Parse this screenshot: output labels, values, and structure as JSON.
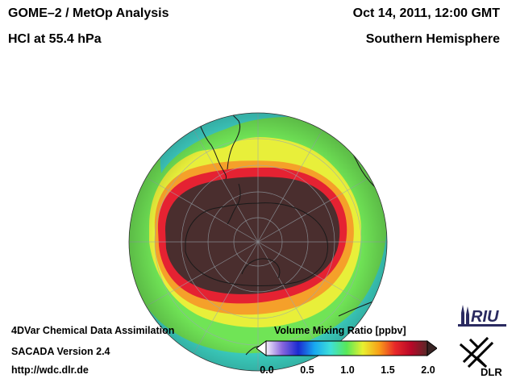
{
  "header": {
    "title_left_1": "GOME–2 / MetOp Analysis",
    "title_left_2": "HCl at 55.4 hPa",
    "title_right_1": "Oct 14, 2011, 12:00 GMT",
    "title_right_2": "Southern Hemisphere"
  },
  "footer": {
    "line1": "4DVar Chemical Data Assimilation",
    "line2": "SACADA Version 2.4",
    "line3": "http://wdc.dlr.de"
  },
  "colorbar": {
    "title": "Volume Mixing Ratio [ppbv]",
    "ticks": [
      "0.0",
      "0.5",
      "1.0",
      "1.5",
      "2.0"
    ],
    "min": 0.0,
    "max": 2.0,
    "colors": [
      "#f4f0fa",
      "#8866dd",
      "#1a2bd0",
      "#18a8f0",
      "#3ee0d8",
      "#58e858",
      "#e8f030",
      "#f8a018",
      "#e82828",
      "#b80828",
      "#582828"
    ]
  },
  "logos": {
    "riu": "RIU",
    "dlr": "DLR"
  },
  "map": {
    "projection": "orthographic",
    "view": "Southern Hemisphere",
    "colors": {
      "background_field": "#3ed8c8",
      "inner_field": "#7ee850",
      "yellow_band": "#e8f038",
      "orange_band": "#f89820",
      "red_band": "#e81830",
      "vortex_core": "#4a2e2e"
    }
  }
}
